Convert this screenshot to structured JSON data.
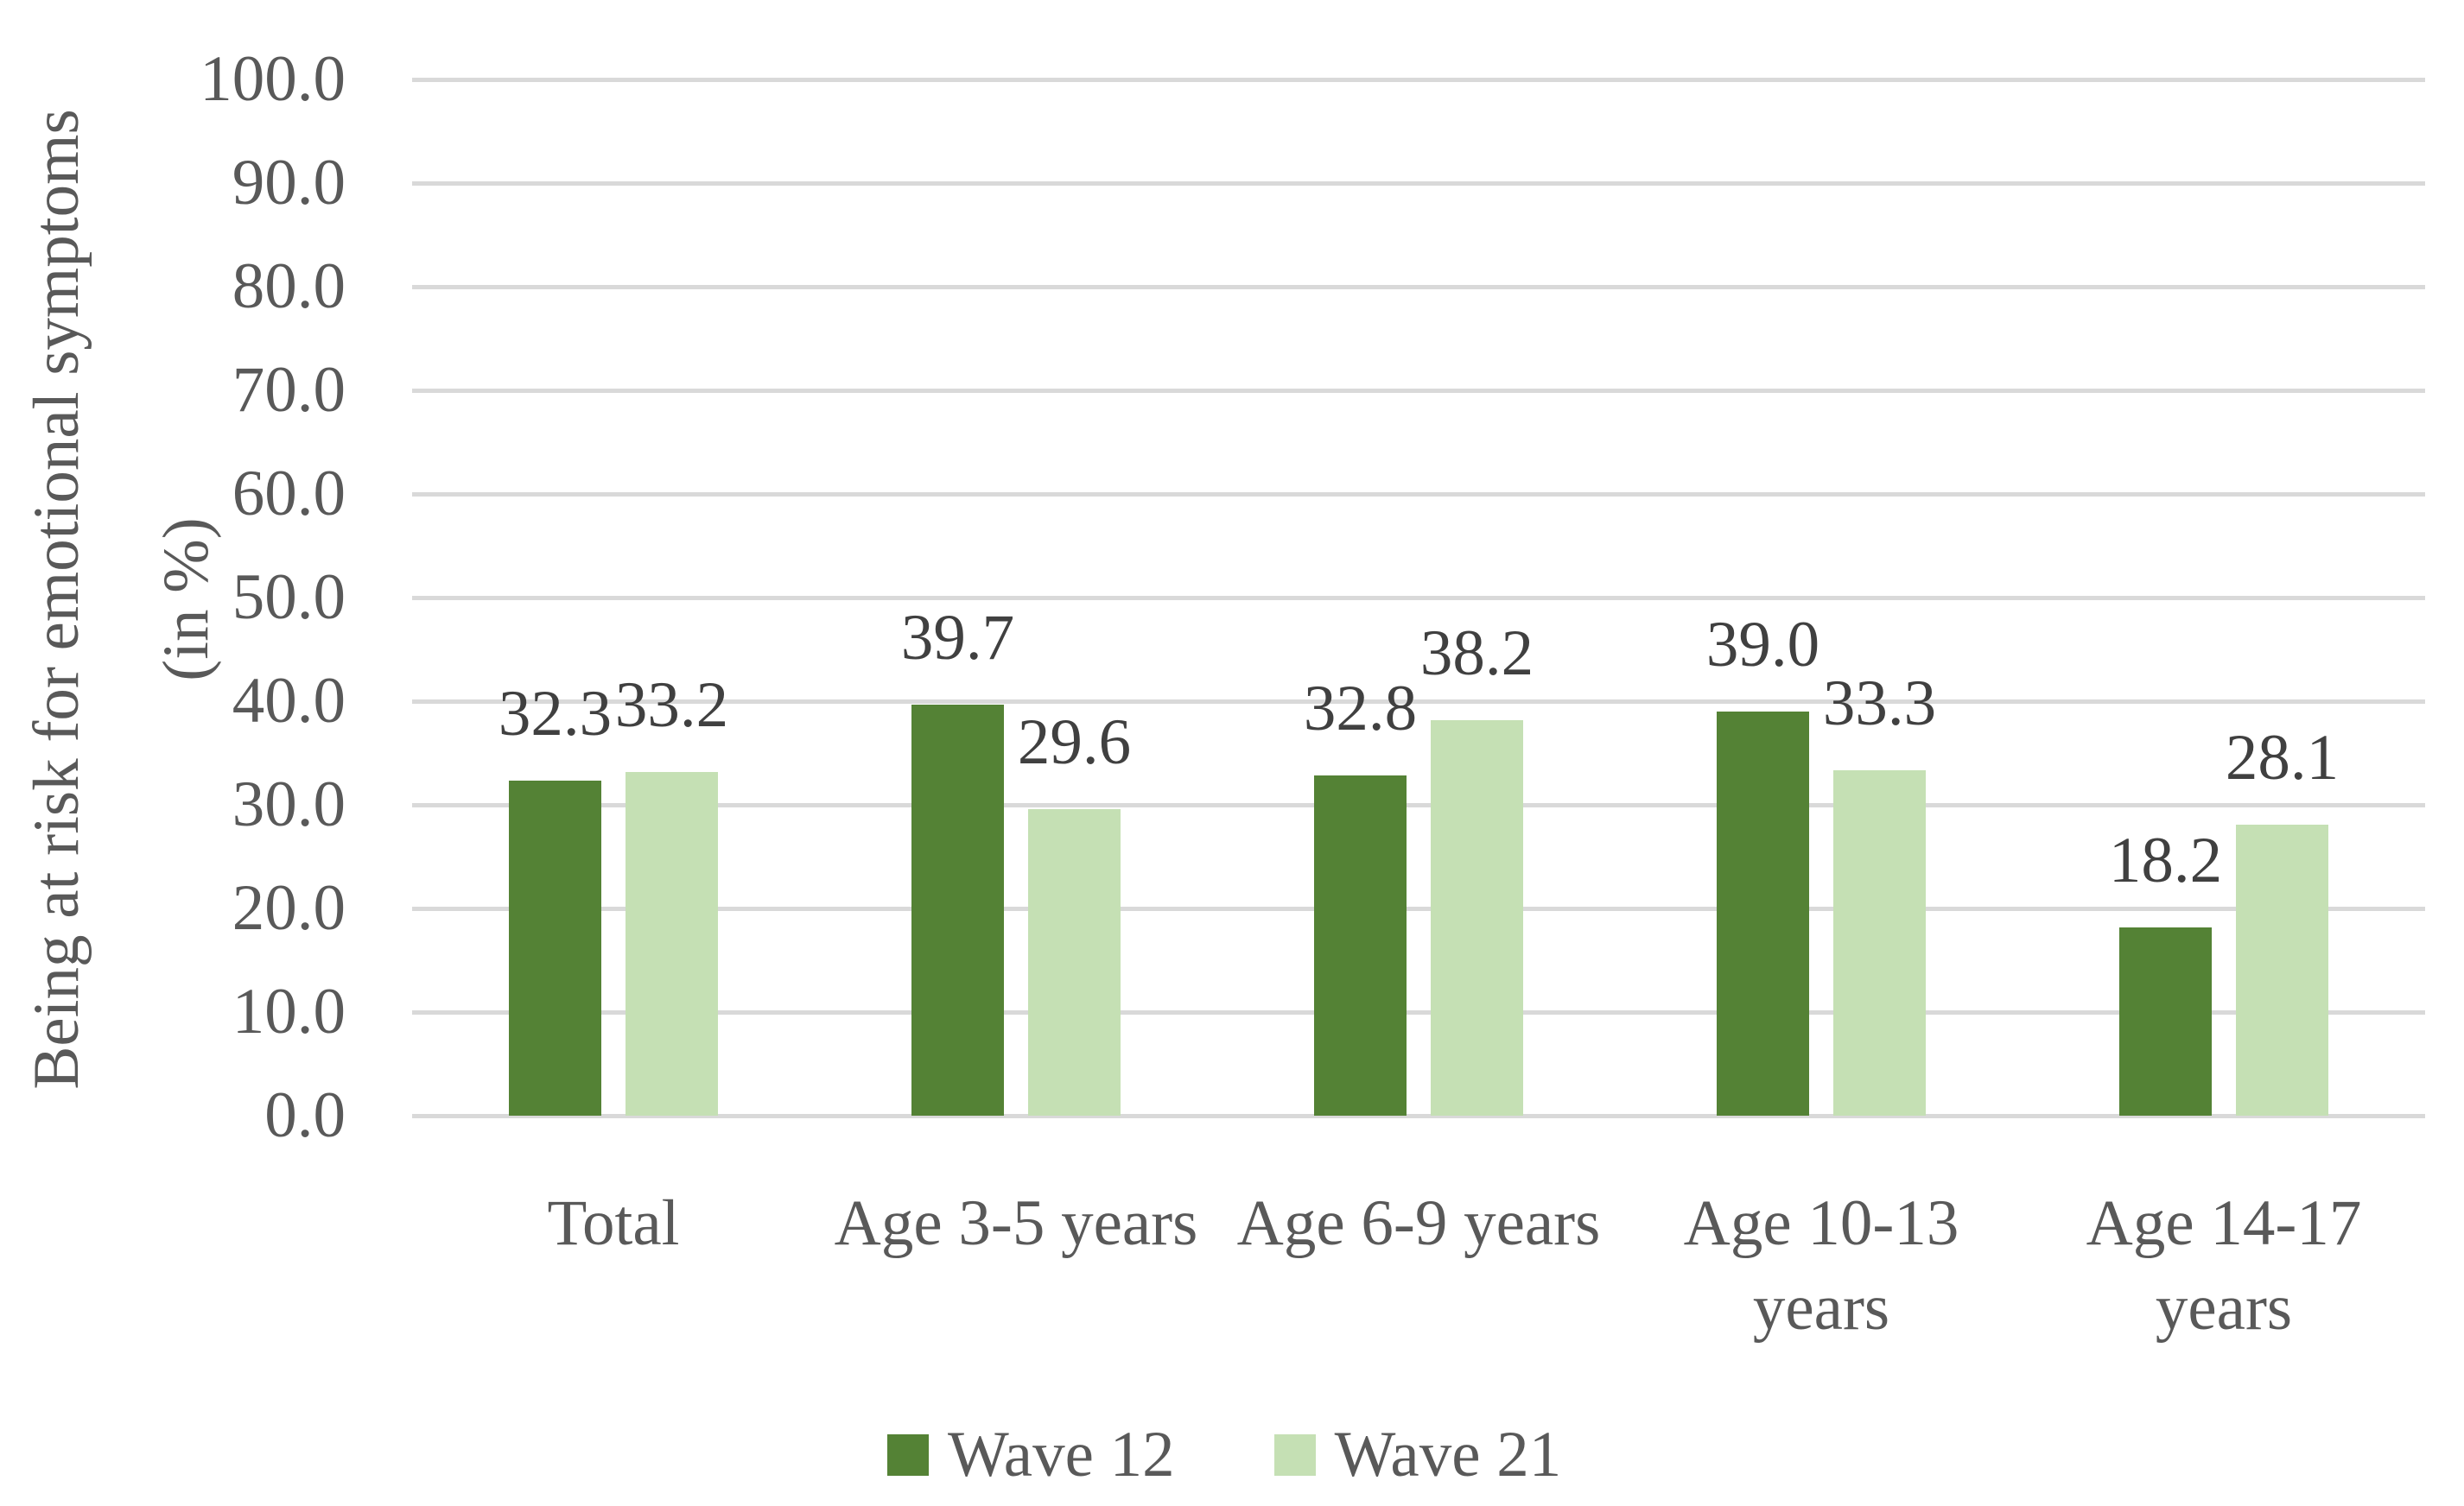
{
  "chart_data": {
    "type": "bar",
    "title": "",
    "ylabel_line1": "Being at risk for emotional symptoms",
    "ylabel_line2": "(in %)",
    "categories": [
      "Total",
      "Age 3-5 years",
      "Age 6-9 years",
      "Age 10-13\nyears",
      "Age 14-17\nyears"
    ],
    "series": [
      {
        "name": "Wave 12",
        "color": "#548235",
        "values": [
          32.3,
          39.7,
          32.8,
          39.0,
          18.2
        ]
      },
      {
        "name": "Wave 21",
        "color": "#C5E0B4",
        "values": [
          33.2,
          29.6,
          38.2,
          33.3,
          28.1
        ]
      }
    ],
    "ylim": [
      0,
      100
    ],
    "ytick_step": 10,
    "ytick_decimals": 1,
    "datalabel_decimals": 1,
    "grid": true,
    "legend_position": "bottom",
    "colors": {
      "gridline": "#D9D9D9",
      "axis_text": "#595959",
      "data_label_text": "#404040",
      "background": "#FFFFFF"
    }
  }
}
